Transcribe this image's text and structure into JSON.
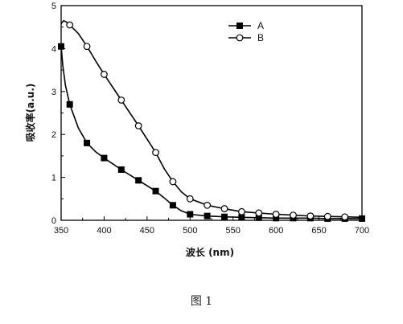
{
  "chart_data": {
    "type": "line",
    "xlabel": "波长 (nm)",
    "ylabel": "吸收率(a.u.)",
    "xlim": [
      350,
      700
    ],
    "ylim": [
      0,
      5
    ],
    "xticks": [
      350,
      400,
      450,
      500,
      550,
      600,
      650,
      700
    ],
    "yticks": [
      0,
      1,
      2,
      3,
      4,
      5
    ],
    "grid": false,
    "legend_position": "top-right",
    "series": [
      {
        "name": "A",
        "marker": "filled-square",
        "color": "#000000",
        "points": [
          [
            350,
            4.05
          ],
          [
            360,
            2.7
          ],
          [
            380,
            1.8
          ],
          [
            400,
            1.45
          ],
          [
            420,
            1.18
          ],
          [
            440,
            0.93
          ],
          [
            460,
            0.68
          ],
          [
            480,
            0.35
          ],
          [
            500,
            0.14
          ],
          [
            520,
            0.1
          ],
          [
            540,
            0.08
          ],
          [
            560,
            0.07
          ],
          [
            580,
            0.06
          ],
          [
            600,
            0.05
          ],
          [
            620,
            0.05
          ],
          [
            640,
            0.05
          ],
          [
            660,
            0.04
          ],
          [
            680,
            0.04
          ],
          [
            700,
            0.04
          ]
        ],
        "curve": [
          [
            350,
            4.05
          ],
          [
            352,
            3.6
          ],
          [
            355,
            3.15
          ],
          [
            360,
            2.7
          ],
          [
            370,
            2.15
          ],
          [
            380,
            1.8
          ],
          [
            390,
            1.6
          ],
          [
            400,
            1.45
          ],
          [
            420,
            1.18
          ],
          [
            440,
            0.93
          ],
          [
            460,
            0.68
          ],
          [
            470,
            0.52
          ],
          [
            480,
            0.35
          ],
          [
            490,
            0.22
          ],
          [
            500,
            0.14
          ],
          [
            520,
            0.1
          ],
          [
            540,
            0.08
          ],
          [
            560,
            0.07
          ],
          [
            580,
            0.06
          ],
          [
            600,
            0.05
          ],
          [
            620,
            0.05
          ],
          [
            640,
            0.05
          ],
          [
            660,
            0.04
          ],
          [
            680,
            0.04
          ],
          [
            700,
            0.04
          ]
        ]
      },
      {
        "name": "B",
        "marker": "open-circle",
        "color": "#000000",
        "points": [
          [
            360,
            4.55
          ],
          [
            380,
            4.05
          ],
          [
            400,
            3.4
          ],
          [
            420,
            2.8
          ],
          [
            440,
            2.2
          ],
          [
            460,
            1.58
          ],
          [
            480,
            0.9
          ],
          [
            500,
            0.5
          ],
          [
            520,
            0.35
          ],
          [
            540,
            0.27
          ],
          [
            560,
            0.2
          ],
          [
            580,
            0.17
          ],
          [
            600,
            0.14
          ],
          [
            620,
            0.12
          ],
          [
            640,
            0.1
          ],
          [
            660,
            0.09
          ],
          [
            680,
            0.08
          ]
        ],
        "curve": [
          [
            350,
            4.58
          ],
          [
            353,
            4.65
          ],
          [
            356,
            4.62
          ],
          [
            360,
            4.55
          ],
          [
            370,
            4.35
          ],
          [
            380,
            4.05
          ],
          [
            390,
            3.72
          ],
          [
            400,
            3.4
          ],
          [
            420,
            2.8
          ],
          [
            440,
            2.2
          ],
          [
            460,
            1.58
          ],
          [
            470,
            1.2
          ],
          [
            480,
            0.9
          ],
          [
            490,
            0.66
          ],
          [
            500,
            0.5
          ],
          [
            520,
            0.35
          ],
          [
            540,
            0.27
          ],
          [
            560,
            0.2
          ],
          [
            580,
            0.17
          ],
          [
            600,
            0.14
          ],
          [
            620,
            0.12
          ],
          [
            640,
            0.1
          ],
          [
            660,
            0.09
          ],
          [
            680,
            0.08
          ],
          [
            700,
            0.07
          ]
        ]
      }
    ]
  },
  "caption": "图 1"
}
